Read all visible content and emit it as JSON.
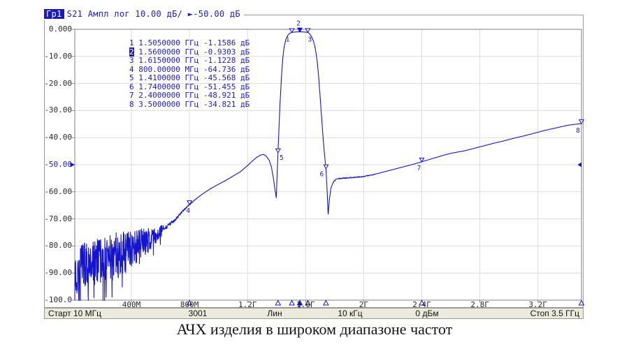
{
  "window": {
    "header": {
      "trace": "Гр1",
      "measurement": "S21",
      "format": "Ампл лог",
      "scale": "10.00 дБ/",
      "ref_arrow": "►",
      "ref_level": "-50.00 дБ"
    },
    "status_bar": {
      "start": "Старт 10 МГц",
      "points": "3001",
      "sweep": "Лин",
      "if_bandwidth": "10 кГц",
      "power": "0 дБм",
      "stop": "Стоп 3.5 ГГц"
    }
  },
  "caption": "АЧХ изделия в широком диапазоне частот",
  "colors": {
    "trace": "#1414cf",
    "accent_text": "#1c1ccc",
    "marker_badge_bg": "#1a1ac0",
    "grid": "#dcdcdc",
    "plot_border": "#7f7f7f",
    "frame": "#9a9a9a",
    "status_bar_bg": "#eceadd",
    "axis_text": "#2a2a2a"
  },
  "chart_data": {
    "type": "line",
    "x_unit": "МГц",
    "y_unit": "дБ",
    "x_range_mhz": [
      10,
      3500
    ],
    "y_range_db": [
      -100,
      0
    ],
    "db_per_div": 10,
    "reference_level_db": -50,
    "reference_tick_index": 5,
    "grid": true,
    "y_tick_labels": [
      "0.000",
      "-10.00",
      "-20.00",
      "-30.00",
      "-40.00",
      "-50.00",
      "-60.00",
      "-70.00",
      "-80.00",
      "-90.00",
      "-100.0"
    ],
    "x_ticks": [
      {
        "label": "400М",
        "mhz": 400
      },
      {
        "label": "800М",
        "mhz": 800
      },
      {
        "label": "1.2Г",
        "mhz": 1200
      },
      {
        "label": "1.6Г",
        "mhz": 1600
      },
      {
        "label": "2Г",
        "mhz": 2000
      },
      {
        "label": "2.4Г",
        "mhz": 2400
      },
      {
        "label": "2.8Г",
        "mhz": 2800
      },
      {
        "label": "3.2Г",
        "mhz": 3200
      }
    ],
    "markers": [
      {
        "n": "1",
        "freq_text": "1.5050000 ГГц",
        "level_text": "-1.1586 дБ",
        "mhz": 1505,
        "db": -1.1586,
        "active": false
      },
      {
        "n": "2",
        "freq_text": "1.5600000 ГГц",
        "level_text": "-0.9303 дБ",
        "mhz": 1560,
        "db": -0.9303,
        "active": true
      },
      {
        "n": "3",
        "freq_text": "1.6150000 ГГц",
        "level_text": "-1.1228 дБ",
        "mhz": 1615,
        "db": -1.1228,
        "active": false
      },
      {
        "n": "4",
        "freq_text": "800.00000 МГц",
        "level_text": "-64.736 дБ",
        "mhz": 800,
        "db": -64.736,
        "active": false
      },
      {
        "n": "5",
        "freq_text": "1.4100000 ГГц",
        "level_text": "-45.568 дБ",
        "mhz": 1410,
        "db": -45.568,
        "active": false
      },
      {
        "n": "6",
        "freq_text": "1.7400000 ГГц",
        "level_text": "-51.455 дБ",
        "mhz": 1740,
        "db": -51.455,
        "active": false
      },
      {
        "n": "7",
        "freq_text": "2.4000000 ГГц",
        "level_text": "-48.921 дБ",
        "mhz": 2400,
        "db": -48.921,
        "active": false
      },
      {
        "n": "8",
        "freq_text": "3.5000000 ГГц",
        "level_text": "-34.821 дБ",
        "mhz": 3500,
        "db": -34.821,
        "active": false
      }
    ],
    "trace_smooth_points_mhz_db": [
      [
        620,
        -74
      ],
      [
        660,
        -72.2
      ],
      [
        700,
        -70.3
      ],
      [
        740,
        -68
      ],
      [
        770,
        -66.2
      ],
      [
        800,
        -64.74
      ],
      [
        830,
        -63.3
      ],
      [
        860,
        -62
      ],
      [
        890,
        -60.8
      ],
      [
        920,
        -59.7
      ],
      [
        950,
        -58.7
      ],
      [
        1000,
        -57.2
      ],
      [
        1050,
        -55.8
      ],
      [
        1100,
        -54.2
      ],
      [
        1150,
        -52.6
      ],
      [
        1200,
        -50.3
      ],
      [
        1240,
        -48.3
      ],
      [
        1265,
        -47.2
      ],
      [
        1290,
        -46.4
      ],
      [
        1310,
        -46.2
      ],
      [
        1330,
        -46.9
      ],
      [
        1350,
        -48.5
      ],
      [
        1365,
        -51
      ],
      [
        1378,
        -55
      ],
      [
        1390,
        -59.5
      ],
      [
        1398,
        -62.2
      ],
      [
        1404,
        -53
      ],
      [
        1410,
        -45.57
      ],
      [
        1416,
        -37
      ],
      [
        1424,
        -27
      ],
      [
        1432,
        -19
      ],
      [
        1442,
        -11
      ],
      [
        1452,
        -6.5
      ],
      [
        1465,
        -3.5
      ],
      [
        1480,
        -2
      ],
      [
        1492,
        -1.4
      ],
      [
        1505,
        -1.16
      ],
      [
        1520,
        -1.02
      ],
      [
        1540,
        -0.95
      ],
      [
        1560,
        -0.93
      ],
      [
        1580,
        -0.96
      ],
      [
        1600,
        -1.03
      ],
      [
        1615,
        -1.12
      ],
      [
        1625,
        -1.5
      ],
      [
        1640,
        -2.6
      ],
      [
        1655,
        -4.5
      ],
      [
        1668,
        -7.5
      ],
      [
        1680,
        -12
      ],
      [
        1692,
        -19
      ],
      [
        1704,
        -28
      ],
      [
        1716,
        -37
      ],
      [
        1728,
        -45
      ],
      [
        1740,
        -51.46
      ],
      [
        1747,
        -58
      ],
      [
        1755,
        -69
      ],
      [
        1763,
        -63
      ],
      [
        1775,
        -58.5
      ],
      [
        1790,
        -56.5
      ],
      [
        1810,
        -55.3
      ],
      [
        1850,
        -55
      ],
      [
        1900,
        -54.8
      ],
      [
        1950,
        -54.6
      ],
      [
        2000,
        -54.4
      ],
      [
        2050,
        -53.8
      ],
      [
        2100,
        -53.2
      ],
      [
        2150,
        -52.5
      ],
      [
        2200,
        -51.8
      ],
      [
        2250,
        -51.1
      ],
      [
        2300,
        -50.4
      ],
      [
        2350,
        -49.7
      ],
      [
        2400,
        -48.92
      ],
      [
        2450,
        -48.1
      ],
      [
        2500,
        -47.3
      ],
      [
        2550,
        -46.5
      ],
      [
        2600,
        -45.8
      ],
      [
        2650,
        -45.3
      ],
      [
        2700,
        -44.8
      ],
      [
        2750,
        -44.1
      ],
      [
        2800,
        -43.4
      ],
      [
        2850,
        -42.7
      ],
      [
        2900,
        -42
      ],
      [
        2950,
        -41.4
      ],
      [
        3000,
        -40.7
      ],
      [
        3050,
        -40
      ],
      [
        3100,
        -39.4
      ],
      [
        3150,
        -38.7
      ],
      [
        3200,
        -38
      ],
      [
        3250,
        -37.3
      ],
      [
        3300,
        -36.7
      ],
      [
        3350,
        -36.1
      ],
      [
        3400,
        -35.5
      ],
      [
        3450,
        -35.1
      ],
      [
        3500,
        -34.82
      ]
    ],
    "noise": {
      "range_mhz": [
        10,
        620
      ],
      "trend_mhz_db": [
        [
          10,
          -90
        ],
        [
          100,
          -87.5
        ],
        [
          200,
          -85
        ],
        [
          300,
          -83.5
        ],
        [
          400,
          -81.5
        ],
        [
          500,
          -78.5
        ],
        [
          560,
          -76.5
        ],
        [
          620,
          -74
        ]
      ],
      "amplitude_mhz_db": [
        [
          10,
          9.5
        ],
        [
          250,
          9
        ],
        [
          400,
          7.5
        ],
        [
          500,
          5
        ],
        [
          560,
          3.2
        ],
        [
          620,
          1.8
        ]
      ],
      "seed": 7
    }
  }
}
